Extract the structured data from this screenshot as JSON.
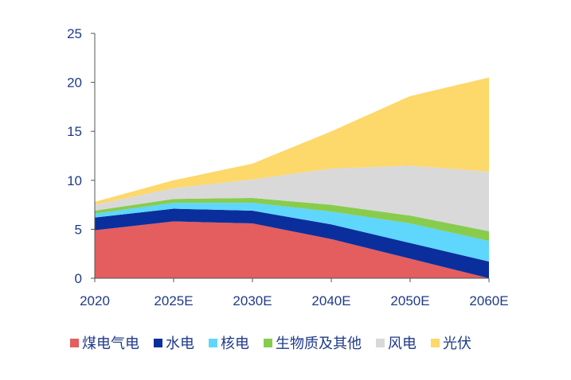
{
  "chart_data": {
    "type": "area",
    "stacked": true,
    "title": "",
    "xlabel": "",
    "ylabel": "",
    "categories": [
      "2020",
      "2025E",
      "2030E",
      "2040E",
      "2050E",
      "2060E"
    ],
    "ylim": [
      0,
      25
    ],
    "yticks": [
      "0",
      "5",
      "10",
      "15",
      "20",
      "25"
    ],
    "grid": false,
    "legend_position": "bottom",
    "series": [
      {
        "name": "煤电气电",
        "color": "#e45d5f",
        "values": [
          4.9,
          5.8,
          5.6,
          4.0,
          2.0,
          0.0
        ]
      },
      {
        "name": "水电",
        "color": "#0a2f9c",
        "values": [
          1.3,
          1.3,
          1.3,
          1.5,
          1.6,
          1.7
        ]
      },
      {
        "name": "核电",
        "color": "#5fd6fb",
        "values": [
          0.4,
          0.6,
          0.8,
          1.3,
          2.0,
          2.1
        ]
      },
      {
        "name": "生物质及其他",
        "color": "#88cc4e",
        "values": [
          0.3,
          0.4,
          0.5,
          0.7,
          0.8,
          1.0
        ]
      },
      {
        "name": "风电",
        "color": "#d9d9d9",
        "values": [
          0.6,
          1.1,
          1.9,
          3.7,
          5.1,
          6.1
        ]
      },
      {
        "name": "光伏",
        "color": "#fdd86a",
        "values": [
          0.3,
          0.8,
          1.6,
          3.8,
          7.1,
          9.6
        ]
      }
    ]
  }
}
